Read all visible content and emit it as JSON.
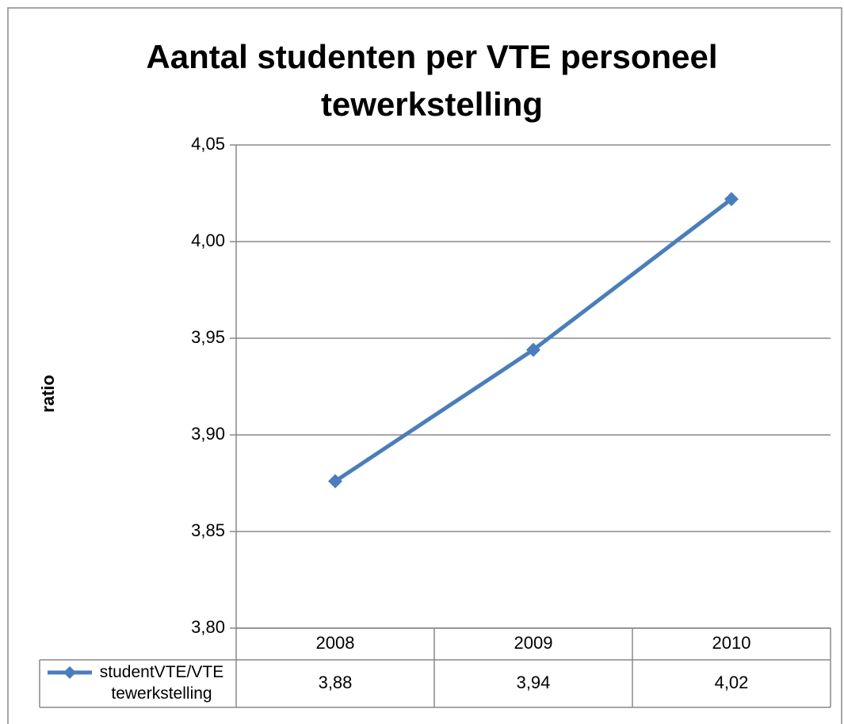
{
  "chart_data": {
    "type": "line",
    "title": "Aantal studenten per VTE personeel tewerkstelling",
    "ylabel": "ratio",
    "categories": [
      "2008",
      "2009",
      "2010"
    ],
    "series": [
      {
        "name": "studentVTE/VTE tewerkstelling",
        "color": "#4a7ebb",
        "values": [
          3.876,
          3.944,
          4.022
        ],
        "value_labels": [
          "3,88",
          "3,94",
          "4,02"
        ]
      }
    ],
    "ylim": [
      3.8,
      4.05
    ],
    "yticks": [
      {
        "value": 3.8,
        "label": "3,80"
      },
      {
        "value": 3.85,
        "label": "3,85"
      },
      {
        "value": 3.9,
        "label": "3,90"
      },
      {
        "value": 3.95,
        "label": "3,95"
      },
      {
        "value": 4.0,
        "label": "4,00"
      },
      {
        "value": 4.05,
        "label": "4,05"
      }
    ],
    "grid": true,
    "data_table": true
  }
}
